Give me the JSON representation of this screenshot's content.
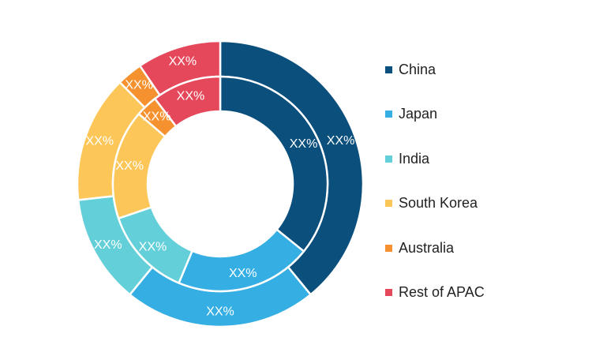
{
  "chart_data": {
    "type": "donut",
    "title": "",
    "legend_position": "right",
    "categories": [
      "China",
      "Japan",
      "India",
      "South Korea",
      "Australia",
      "Rest of APAC"
    ],
    "colors": [
      "#0b4f7c",
      "#35aee3",
      "#63cfd8",
      "#fdc659",
      "#f5922f",
      "#e5485a"
    ],
    "series": [
      {
        "ring": "outer",
        "values": [
          39.1,
          21.8,
          12.3,
          14.4,
          2.9,
          9.5
        ],
        "labels": [
          "XX%",
          "XX%",
          "XX%",
          "XX%",
          "XX%",
          "XX%"
        ]
      },
      {
        "ring": "inner",
        "values": [
          35.8,
          20.5,
          13.5,
          16.5,
          3.3,
          10.4
        ],
        "labels": [
          "XX%",
          "XX%",
          "XX%",
          "XX%",
          "XX%",
          "XX%"
        ]
      }
    ]
  }
}
